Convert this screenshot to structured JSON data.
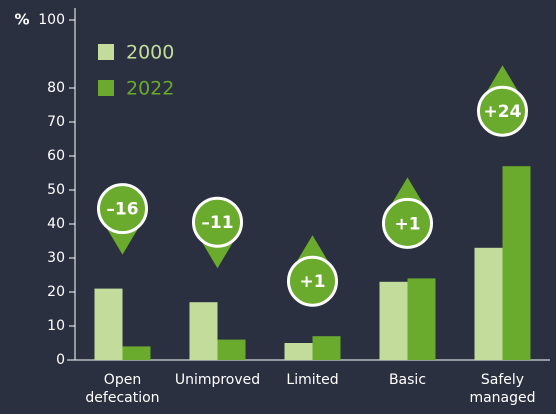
{
  "chart_data": {
    "type": "bar",
    "y_axis_label": "%",
    "categories": [
      "Open defecation",
      "Unimproved",
      "Limited",
      "Basic",
      "Safely managed"
    ],
    "series": [
      {
        "name": "2000",
        "color": "#c3dc9c",
        "values": [
          21,
          17,
          5,
          23,
          33
        ]
      },
      {
        "name": "2022",
        "color": "#6aaa2c",
        "values": [
          4,
          6,
          7,
          24,
          57
        ]
      }
    ],
    "annotations": [
      "–16",
      "–11",
      "+1",
      "+1",
      "+24"
    ],
    "ylim": [
      0,
      100
    ],
    "yticks": [
      0,
      10,
      20,
      30,
      40,
      50,
      60,
      70,
      80,
      100
    ],
    "legend": "upper left"
  }
}
